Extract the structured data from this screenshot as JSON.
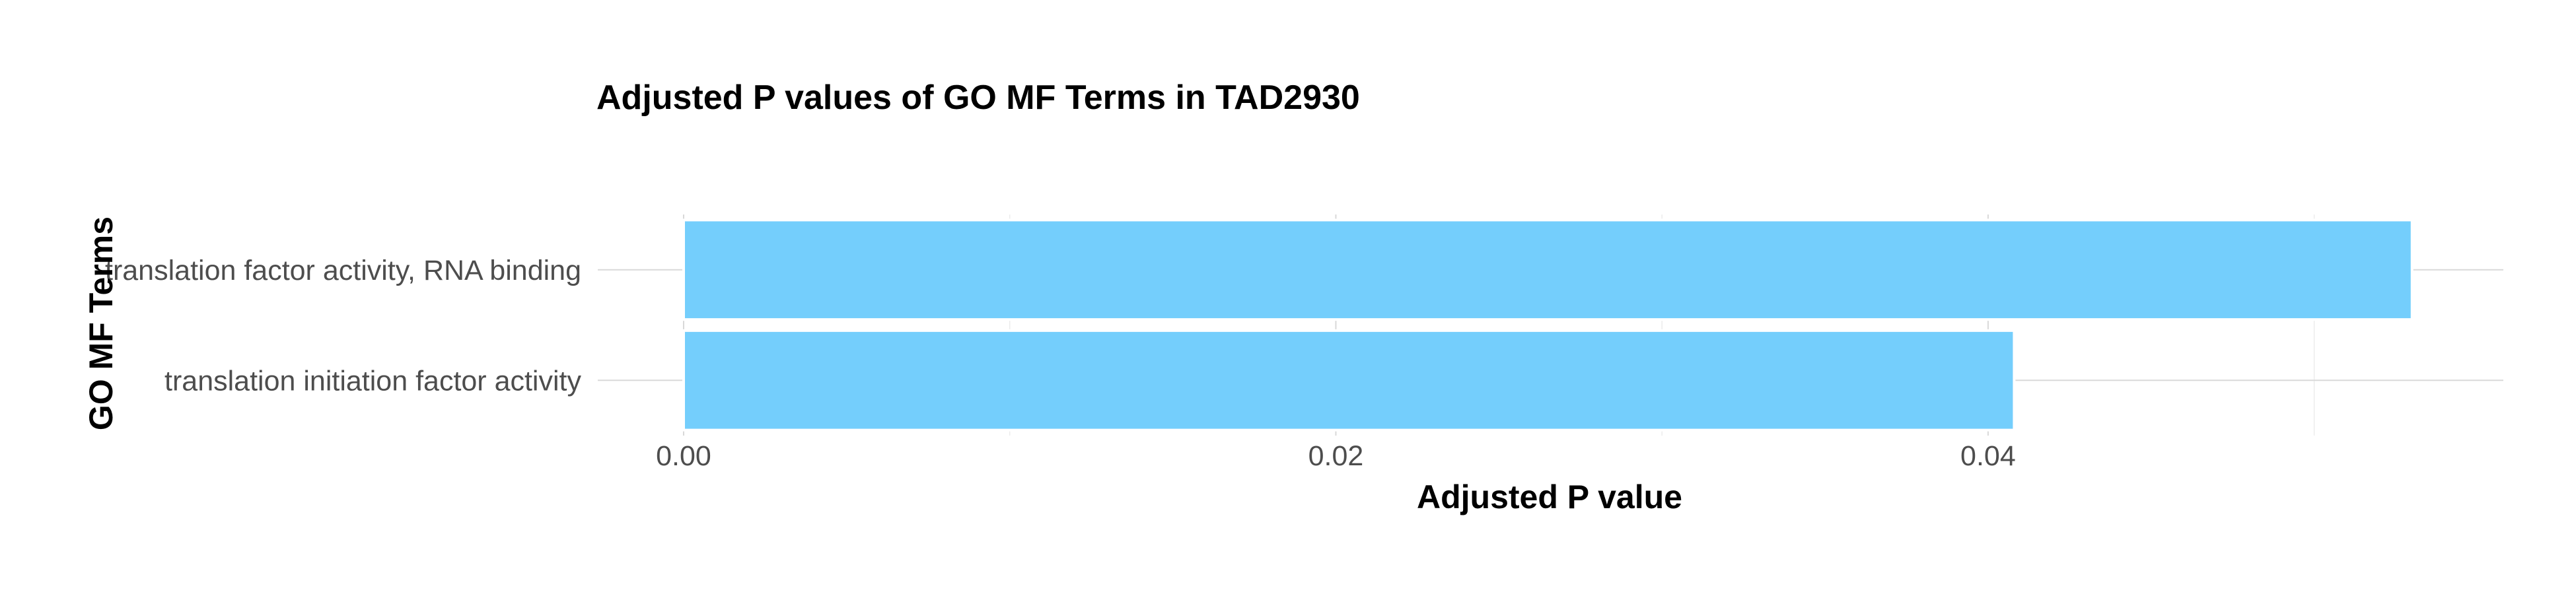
{
  "chart_data": {
    "type": "bar",
    "orientation": "horizontal",
    "title": "Adjusted P values of GO MF Terms in TAD2930",
    "xlabel": "Adjusted P value",
    "ylabel": "GO MF Terms",
    "categories": [
      "translation factor activity, RNA binding",
      "translation initiation factor activity"
    ],
    "values": [
      0.053,
      0.0408
    ],
    "xlim": [
      0,
      0.0558
    ],
    "xticks": [
      0.0,
      0.02,
      0.04
    ],
    "xtick_labels": [
      "0.00",
      "0.02",
      "0.04"
    ],
    "grid": true,
    "legend": "none",
    "bar_color": "#74cefc"
  }
}
